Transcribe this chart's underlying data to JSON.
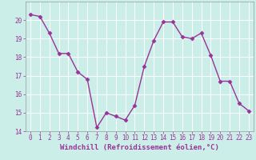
{
  "x": [
    0,
    1,
    2,
    3,
    4,
    5,
    6,
    7,
    8,
    9,
    10,
    11,
    12,
    13,
    14,
    15,
    16,
    17,
    18,
    19,
    20,
    21,
    22,
    23
  ],
  "y": [
    20.3,
    20.2,
    19.3,
    18.2,
    18.2,
    17.2,
    16.8,
    14.2,
    15.0,
    14.8,
    14.6,
    15.4,
    17.5,
    18.9,
    19.9,
    19.9,
    19.1,
    19.0,
    19.3,
    18.1,
    16.7,
    16.7,
    15.5,
    15.1
  ],
  "line_color": "#993399",
  "marker": "D",
  "marker_size": 2.5,
  "bg_color": "#cceee8",
  "grid_color": "#ffffff",
  "xlabel": "Windchill (Refroidissement éolien,°C)",
  "xlabel_color": "#993399",
  "ylim": [
    14,
    21
  ],
  "yticks": [
    14,
    15,
    16,
    17,
    18,
    19,
    20
  ],
  "xticks": [
    0,
    1,
    2,
    3,
    4,
    5,
    6,
    7,
    8,
    9,
    10,
    11,
    12,
    13,
    14,
    15,
    16,
    17,
    18,
    19,
    20,
    21,
    22,
    23
  ],
  "tick_color": "#993399",
  "tick_fontsize": 5.5,
  "xlabel_fontsize": 6.5,
  "spine_color": "#999999",
  "line_width": 1.0
}
